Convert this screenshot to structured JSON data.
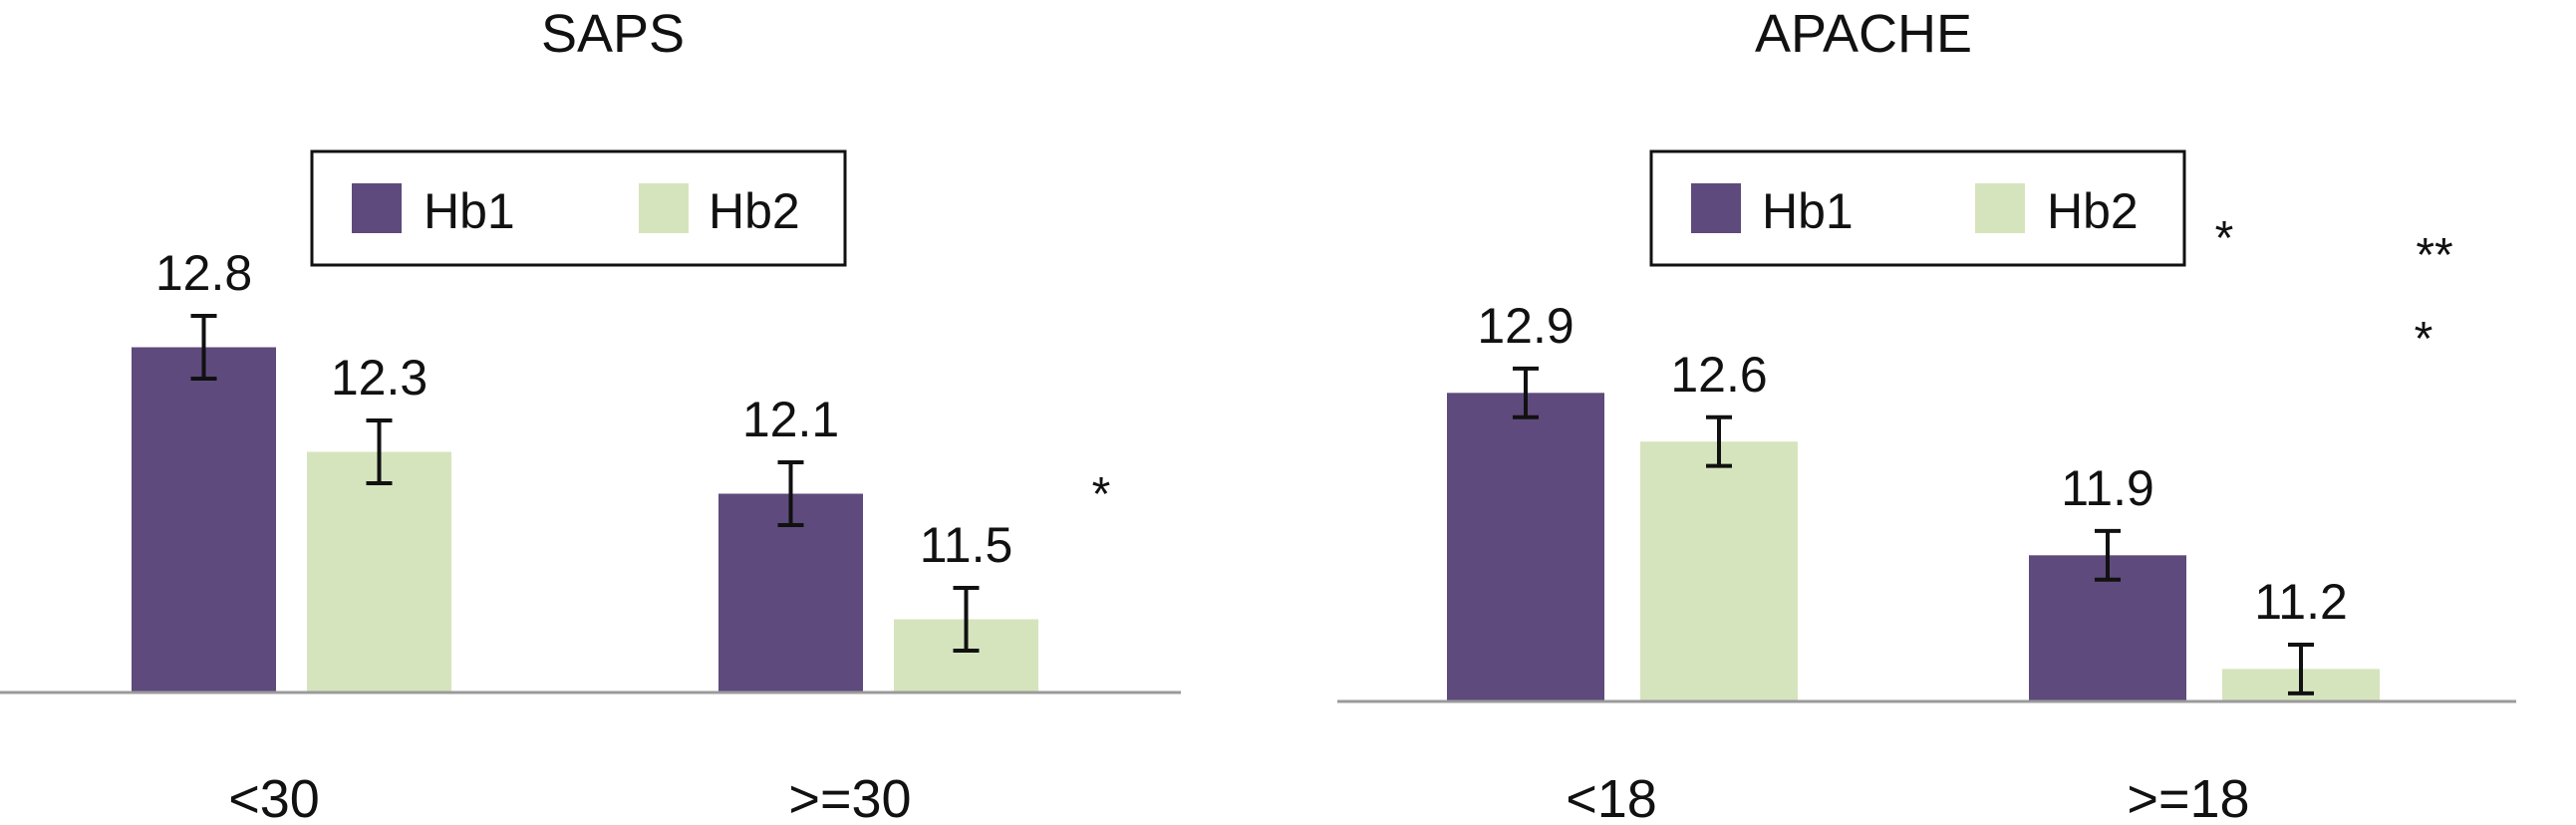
{
  "colors": {
    "Hb1": "#5e4a7c",
    "Hb2": "#d6e4bd",
    "axis": "#9a9a9a",
    "errorbar": "#111111",
    "legend_border": "#111111"
  },
  "chart_data": [
    {
      "type": "bar",
      "title": "SAPS",
      "categories": [
        "<30",
        ">=30"
      ],
      "series": [
        {
          "name": "Hb1",
          "values": [
            12.8,
            12.1
          ],
          "labels": [
            "12.8",
            "12.1"
          ]
        },
        {
          "name": "Hb2",
          "values": [
            12.3,
            11.5
          ],
          "labels": [
            "12.3",
            "11.5"
          ]
        }
      ],
      "error": [
        [
          0.15,
          0.15
        ],
        [
          0.15,
          0.15
        ]
      ],
      "annotations": [
        {
          "text": "*",
          "category": 1
        }
      ],
      "legend": {
        "position": "top-center",
        "entries": [
          "Hb1",
          "Hb2"
        ]
      },
      "xlabel": "",
      "ylabel": "",
      "grid": false
    },
    {
      "type": "bar",
      "title": "APACHE",
      "categories": [
        "<18",
        ">=18"
      ],
      "series": [
        {
          "name": "Hb1",
          "values": [
            12.9,
            11.9
          ],
          "labels": [
            "12.9",
            "11.9"
          ]
        },
        {
          "name": "Hb2",
          "values": [
            12.6,
            11.2
          ],
          "labels": [
            "12.6",
            "11.2"
          ]
        }
      ],
      "error": [
        [
          0.15,
          0.15
        ],
        [
          0.15,
          0.15
        ]
      ],
      "annotations": [
        {
          "text": "*",
          "category": 1
        },
        {
          "text": "**",
          "category": 1
        },
        {
          "text": "*",
          "category": 1
        }
      ],
      "legend": {
        "position": "top-center",
        "entries": [
          "Hb1",
          "Hb2"
        ]
      },
      "xlabel": "",
      "ylabel": "",
      "grid": false
    }
  ]
}
